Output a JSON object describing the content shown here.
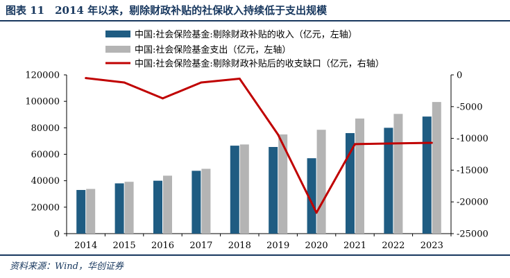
{
  "figure": {
    "title": "图表 11　2014 年以来，剔除财政补贴的社保收入持续低于支出规模",
    "source": "资料来源：Wind，华创证券"
  },
  "chart_data": {
    "type": "bar",
    "categories": [
      "2014",
      "2015",
      "2016",
      "2017",
      "2018",
      "2019",
      "2020",
      "2021",
      "2022",
      "2023"
    ],
    "series": [
      {
        "name": "中国:社会保险基金:剔除财政补贴的收入（亿元，左轴）",
        "kind": "bar",
        "axis": "left",
        "color": "#1f5c82",
        "values": [
          33000,
          38000,
          40000,
          47500,
          66500,
          65500,
          57000,
          76000,
          80000,
          88500
        ]
      },
      {
        "name": "中国:社会保险基金支出（亿元，左轴）",
        "kind": "bar",
        "axis": "left",
        "color": "#b4b4b4",
        "values": [
          33800,
          39200,
          43800,
          49000,
          67400,
          75000,
          78500,
          87000,
          90500,
          99500
        ]
      },
      {
        "name": "中国:社会保险基金:剔除财政补贴后的收支缺口（亿元，右轴）",
        "kind": "line",
        "axis": "right",
        "color": "#c00000",
        "values": [
          -500,
          -1200,
          -3700,
          -1200,
          -600,
          -9400,
          -21700,
          -10900,
          -10800,
          -10700
        ]
      }
    ],
    "y_left": {
      "lim": [
        0,
        120000
      ],
      "ticks": [
        "0",
        "20000",
        "40000",
        "60000",
        "80000",
        "100000",
        "120000"
      ]
    },
    "y_right": {
      "lim": [
        -25000,
        0
      ],
      "ticks": [
        "-25000",
        "-20000",
        "-15000",
        "-10000",
        "-5000",
        "0"
      ]
    },
    "grid": false,
    "legend": "top-left"
  }
}
